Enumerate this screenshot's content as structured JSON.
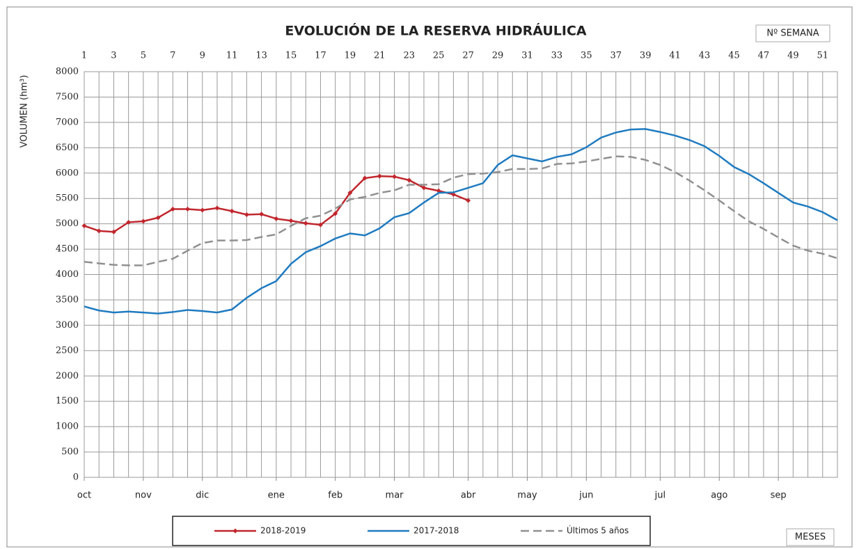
{
  "chart_data": {
    "type": "line",
    "title": "EVOLUCIÓN DE LA RESERVA HIDRÁULICA",
    "x_axis_label": "Nº SEMANA",
    "x2_axis_label": "MESES",
    "y_axis_label": "VOLUMEN (hm³)",
    "xlim": [
      1,
      52
    ],
    "xticks": [
      1,
      3,
      5,
      7,
      9,
      11,
      13,
      15,
      17,
      19,
      21,
      23,
      25,
      27,
      29,
      31,
      33,
      35,
      37,
      39,
      41,
      43,
      45,
      47,
      49,
      51
    ],
    "x_minor_ticks": [
      2,
      4,
      6,
      8,
      10,
      12,
      14,
      16,
      18,
      20,
      22,
      24,
      26,
      28,
      30,
      32,
      34,
      36,
      38,
      40,
      42,
      44,
      46,
      48,
      50,
      52
    ],
    "x2ticks": [
      {
        "value": 1,
        "label": "oct"
      },
      {
        "value": 5,
        "label": "nov"
      },
      {
        "value": 9,
        "label": "dic"
      },
      {
        "value": 14,
        "label": "ene"
      },
      {
        "value": 18,
        "label": "feb"
      },
      {
        "value": 22,
        "label": "mar"
      },
      {
        "value": 27,
        "label": "abr"
      },
      {
        "value": 31,
        "label": "may"
      },
      {
        "value": 35,
        "label": "jun"
      },
      {
        "value": 40,
        "label": "jul"
      },
      {
        "value": 44,
        "label": "ago"
      },
      {
        "value": 48,
        "label": "sep"
      }
    ],
    "ylim": [
      0,
      8000
    ],
    "yticks": [
      0,
      500,
      1000,
      1500,
      2000,
      2500,
      3000,
      3500,
      4000,
      4500,
      5000,
      5500,
      6000,
      6500,
      7000,
      7500,
      8000
    ],
    "grid": true,
    "x": [
      1,
      2,
      3,
      4,
      5,
      6,
      7,
      8,
      9,
      10,
      11,
      12,
      13,
      14,
      15,
      16,
      17,
      18,
      19,
      20,
      21,
      22,
      23,
      24,
      25,
      26,
      27,
      28,
      29,
      30,
      31,
      32,
      33,
      34,
      35,
      36,
      37,
      38,
      39,
      40,
      41,
      42,
      43,
      44,
      45,
      46,
      47,
      48,
      49,
      50,
      51,
      52
    ],
    "series": [
      {
        "name": "2018-2019",
        "color": "#c0272d",
        "marker": true,
        "dashed": false,
        "values": [
          4960,
          4860,
          4840,
          5030,
          5050,
          5120,
          5290,
          5290,
          5270,
          5310,
          5250,
          5180,
          5190,
          5100,
          5060,
          5010,
          4980,
          5200,
          5610,
          5900,
          5940,
          5930,
          5860,
          5710,
          5650,
          5580,
          5460,
          null,
          null,
          null,
          null,
          null,
          null,
          null,
          null,
          null,
          null,
          null,
          null,
          null,
          null,
          null,
          null,
          null,
          null,
          null,
          null,
          null,
          null,
          null,
          null,
          null
        ]
      },
      {
        "name": "2017-2018",
        "color": "#1f7bc0",
        "marker": false,
        "dashed": false,
        "values": [
          3370,
          3290,
          3250,
          3270,
          3250,
          3230,
          3260,
          3300,
          3280,
          3250,
          3310,
          3540,
          3730,
          3870,
          4210,
          4440,
          4560,
          4710,
          4810,
          4770,
          4910,
          5130,
          5210,
          5420,
          5610,
          5620,
          5710,
          5800,
          6160,
          6350,
          6290,
          6230,
          6320,
          6370,
          6510,
          6700,
          6800,
          6860,
          6870,
          6810,
          6740,
          6650,
          6530,
          6340,
          6120,
          5980,
          5800,
          5610,
          5420,
          5340,
          5230,
          5070
        ]
      },
      {
        "name": "Últimos 5 años",
        "color": "#909090",
        "marker": false,
        "dashed": true,
        "values": [
          4250,
          4220,
          4190,
          4180,
          4180,
          4250,
          4310,
          4470,
          4620,
          4670,
          4670,
          4680,
          4740,
          4790,
          4960,
          5110,
          5160,
          5300,
          5480,
          5530,
          5610,
          5660,
          5770,
          5770,
          5780,
          5910,
          5980,
          5990,
          6020,
          6080,
          6080,
          6090,
          6180,
          6190,
          6230,
          6280,
          6330,
          6320,
          6260,
          6160,
          6020,
          5850,
          5660,
          5460,
          5250,
          5050,
          4900,
          4730,
          4570,
          4470,
          4410,
          4320
        ]
      }
    ]
  }
}
